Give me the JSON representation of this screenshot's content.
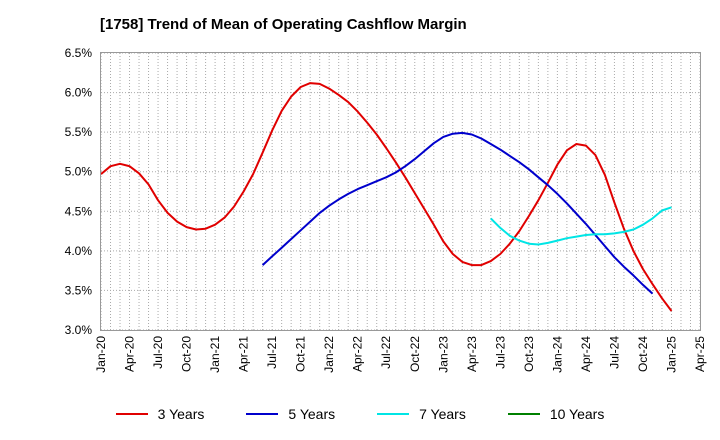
{
  "title": "[1758]  Trend of Mean of Operating Cashflow Margin",
  "chart_data": {
    "type": "line",
    "title": "[1758]  Trend of Mean of Operating Cashflow Margin",
    "xlabel": "",
    "ylabel": "",
    "x_ticks": [
      "Jan-20",
      "Apr-20",
      "Jul-20",
      "Oct-20",
      "Jan-21",
      "Apr-21",
      "Jul-21",
      "Oct-21",
      "Jan-22",
      "Apr-22",
      "Jul-22",
      "Oct-22",
      "Jan-23",
      "Apr-23",
      "Jul-23",
      "Oct-23",
      "Jan-24",
      "Apr-24",
      "Jul-24",
      "Oct-24",
      "Jan-25",
      "Apr-25"
    ],
    "y_ticks": [
      "3.0%",
      "3.5%",
      "4.0%",
      "4.5%",
      "5.0%",
      "5.5%",
      "6.0%",
      "6.5%"
    ],
    "ylim": [
      3.0,
      6.5
    ],
    "grid": true,
    "legend_position": "bottom",
    "series": [
      {
        "name": "3 Years",
        "color": "#e00000",
        "points": [
          [
            "Jan-20",
            4.97
          ],
          [
            "Feb-20",
            5.07
          ],
          [
            "Mar-20",
            5.1
          ],
          [
            "Apr-20",
            5.07
          ],
          [
            "May-20",
            4.98
          ],
          [
            "Jun-20",
            4.84
          ],
          [
            "Jul-20",
            4.64
          ],
          [
            "Aug-20",
            4.48
          ],
          [
            "Sep-20",
            4.37
          ],
          [
            "Oct-20",
            4.3
          ],
          [
            "Nov-20",
            4.27
          ],
          [
            "Dec-20",
            4.28
          ],
          [
            "Jan-21",
            4.33
          ],
          [
            "Feb-21",
            4.42
          ],
          [
            "Mar-21",
            4.56
          ],
          [
            "Apr-21",
            4.75
          ],
          [
            "May-21",
            4.97
          ],
          [
            "Jun-21",
            5.24
          ],
          [
            "Jul-21",
            5.52
          ],
          [
            "Aug-21",
            5.77
          ],
          [
            "Sep-21",
            5.95
          ],
          [
            "Oct-21",
            6.07
          ],
          [
            "Nov-21",
            6.12
          ],
          [
            "Dec-21",
            6.11
          ],
          [
            "Jan-22",
            6.05
          ],
          [
            "Feb-22",
            5.97
          ],
          [
            "Mar-22",
            5.88
          ],
          [
            "Apr-22",
            5.76
          ],
          [
            "May-22",
            5.62
          ],
          [
            "Jun-22",
            5.47
          ],
          [
            "Jul-22",
            5.3
          ],
          [
            "Aug-22",
            5.12
          ],
          [
            "Sep-22",
            4.93
          ],
          [
            "Oct-22",
            4.73
          ],
          [
            "Nov-22",
            4.53
          ],
          [
            "Dec-22",
            4.33
          ],
          [
            "Jan-23",
            4.12
          ],
          [
            "Feb-23",
            3.96
          ],
          [
            "Mar-23",
            3.86
          ],
          [
            "Apr-23",
            3.82
          ],
          [
            "May-23",
            3.82
          ],
          [
            "Jun-23",
            3.87
          ],
          [
            "Jul-23",
            3.96
          ],
          [
            "Aug-23",
            4.09
          ],
          [
            "Sep-23",
            4.25
          ],
          [
            "Oct-23",
            4.44
          ],
          [
            "Nov-23",
            4.64
          ],
          [
            "Dec-23",
            4.86
          ],
          [
            "Jan-24",
            5.09
          ],
          [
            "Feb-24",
            5.27
          ],
          [
            "Mar-24",
            5.35
          ],
          [
            "Apr-24",
            5.33
          ],
          [
            "May-24",
            5.21
          ],
          [
            "Jun-24",
            4.96
          ],
          [
            "Jul-24",
            4.61
          ],
          [
            "Aug-24",
            4.28
          ],
          [
            "Sep-24",
            4.0
          ],
          [
            "Oct-24",
            3.77
          ],
          [
            "Nov-24",
            3.58
          ],
          [
            "Dec-24",
            3.4
          ],
          [
            "Jan-25",
            3.24
          ]
        ]
      },
      {
        "name": "5 Years",
        "color": "#0000cc",
        "points": [
          [
            "Jun-21",
            3.82
          ],
          [
            "Jul-21",
            3.93
          ],
          [
            "Aug-21",
            4.04
          ],
          [
            "Sep-21",
            4.15
          ],
          [
            "Oct-21",
            4.26
          ],
          [
            "Nov-21",
            4.37
          ],
          [
            "Dec-21",
            4.48
          ],
          [
            "Jan-22",
            4.57
          ],
          [
            "Feb-22",
            4.65
          ],
          [
            "Mar-22",
            4.72
          ],
          [
            "Apr-22",
            4.78
          ],
          [
            "May-22",
            4.83
          ],
          [
            "Jun-22",
            4.88
          ],
          [
            "Jul-22",
            4.93
          ],
          [
            "Aug-22",
            4.99
          ],
          [
            "Sep-22",
            5.07
          ],
          [
            "Oct-22",
            5.16
          ],
          [
            "Nov-22",
            5.26
          ],
          [
            "Dec-22",
            5.36
          ],
          [
            "Jan-23",
            5.44
          ],
          [
            "Feb-23",
            5.48
          ],
          [
            "Mar-23",
            5.49
          ],
          [
            "Apr-23",
            5.47
          ],
          [
            "May-23",
            5.42
          ],
          [
            "Jun-23",
            5.35
          ],
          [
            "Jul-23",
            5.28
          ],
          [
            "Aug-23",
            5.2
          ],
          [
            "Sep-23",
            5.12
          ],
          [
            "Oct-23",
            5.03
          ],
          [
            "Nov-23",
            4.93
          ],
          [
            "Dec-23",
            4.83
          ],
          [
            "Jan-24",
            4.72
          ],
          [
            "Feb-24",
            4.6
          ],
          [
            "Mar-24",
            4.47
          ],
          [
            "Apr-24",
            4.34
          ],
          [
            "May-24",
            4.2
          ],
          [
            "Jun-24",
            4.06
          ],
          [
            "Jul-24",
            3.92
          ],
          [
            "Aug-24",
            3.8
          ],
          [
            "Sep-24",
            3.69
          ],
          [
            "Oct-24",
            3.57
          ],
          [
            "Nov-24",
            3.46
          ]
        ]
      },
      {
        "name": "7 Years",
        "color": "#00e5e5",
        "points": [
          [
            "Jun-23",
            4.41
          ],
          [
            "Jul-23",
            4.29
          ],
          [
            "Aug-23",
            4.19
          ],
          [
            "Sep-23",
            4.13
          ],
          [
            "Oct-23",
            4.09
          ],
          [
            "Nov-23",
            4.08
          ],
          [
            "Dec-23",
            4.1
          ],
          [
            "Jan-24",
            4.13
          ],
          [
            "Feb-24",
            4.16
          ],
          [
            "Mar-24",
            4.18
          ],
          [
            "Apr-24",
            4.2
          ],
          [
            "May-24",
            4.21
          ],
          [
            "Jun-24",
            4.21
          ],
          [
            "Jul-24",
            4.22
          ],
          [
            "Aug-24",
            4.24
          ],
          [
            "Sep-24",
            4.27
          ],
          [
            "Oct-24",
            4.33
          ],
          [
            "Nov-24",
            4.41
          ],
          [
            "Dec-24",
            4.51
          ],
          [
            "Jan-25",
            4.55
          ]
        ]
      },
      {
        "name": "10 Years",
        "color": "#008000",
        "points": []
      }
    ]
  }
}
